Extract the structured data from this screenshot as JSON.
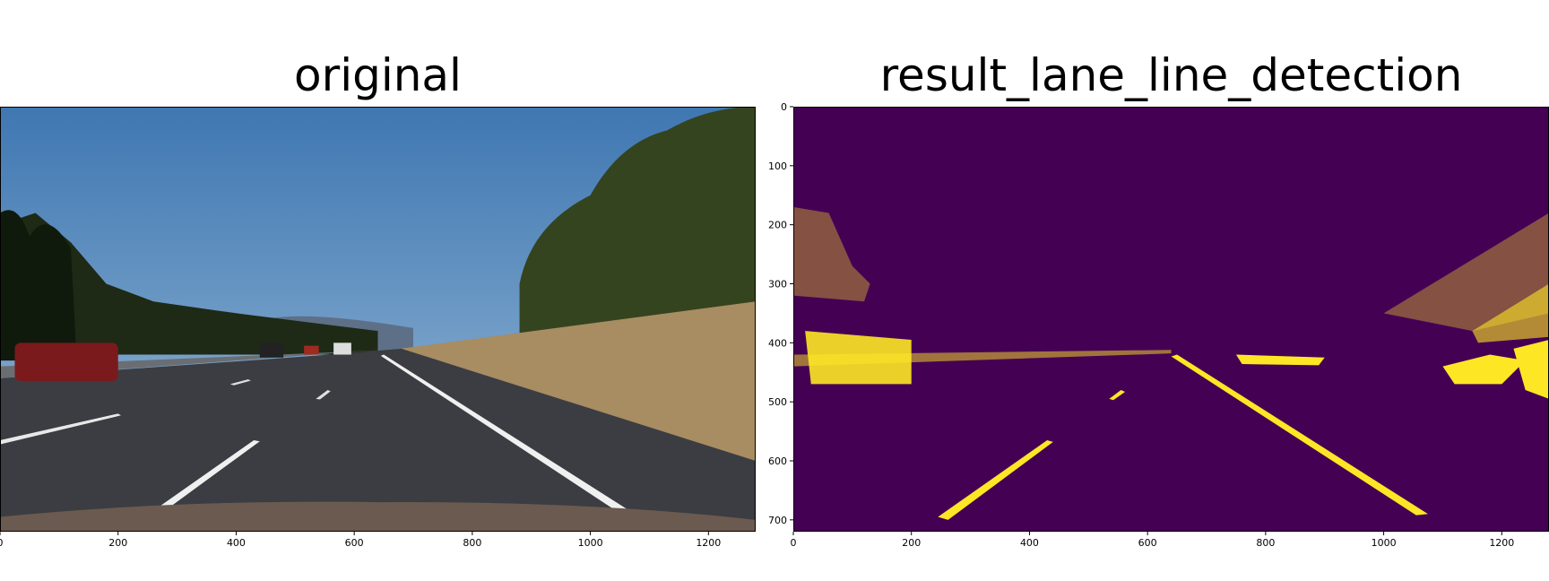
{
  "chart_data": [
    {
      "type": "image",
      "title": "original",
      "xlim": [
        0,
        1280
      ],
      "ylim": [
        720,
        0
      ],
      "xticks": [
        0,
        200,
        400,
        600,
        800,
        1000,
        1200
      ]
    },
    {
      "type": "image",
      "title": "result_lane_line_detection",
      "xlim": [
        0,
        1280
      ],
      "ylim": [
        720,
        0
      ],
      "xticks": [
        0,
        200,
        400,
        600,
        800,
        1000,
        1200
      ],
      "yticks": [
        0,
        100,
        200,
        300,
        400,
        500,
        600,
        700
      ]
    }
  ]
}
